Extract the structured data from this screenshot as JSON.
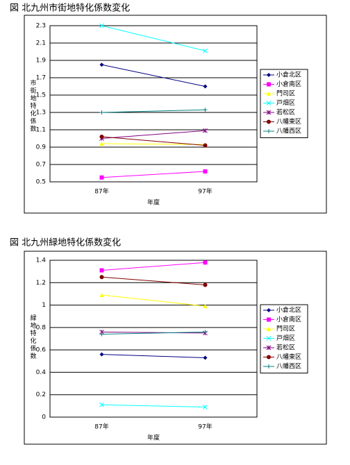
{
  "chart_data": [
    {
      "type": "line",
      "title": "図 北九州市街地特化係数変化",
      "x_label": "年度",
      "y_label": "市街地特化係数",
      "categories": [
        "87年",
        "97年"
      ],
      "ylim": [
        0.5,
        2.3
      ],
      "yticks": [
        0.5,
        0.7,
        0.9,
        1.1,
        1.3,
        1.5,
        1.7,
        1.9,
        2.1,
        2.3
      ],
      "grid": true,
      "legend": "right",
      "series": [
        {
          "name": "小倉北区",
          "color": "#000080",
          "marker": "diamond",
          "values": [
            1.85,
            1.6
          ]
        },
        {
          "name": "小倉南区",
          "color": "#ff00ff",
          "marker": "square",
          "values": [
            0.55,
            0.62
          ]
        },
        {
          "name": "門司区",
          "color": "#ffff00",
          "marker": "triangle",
          "values": [
            0.94,
            0.93
          ]
        },
        {
          "name": "戸畑区",
          "color": "#00ffff",
          "marker": "x",
          "values": [
            2.3,
            2.01
          ]
        },
        {
          "name": "若松区",
          "color": "#800080",
          "marker": "star",
          "values": [
            1.0,
            1.09
          ]
        },
        {
          "name": "八幡東区",
          "color": "#800000",
          "marker": "circle",
          "values": [
            1.02,
            0.92
          ]
        },
        {
          "name": "八幡西区",
          "color": "#008080",
          "marker": "plus",
          "values": [
            1.3,
            1.33
          ]
        }
      ]
    },
    {
      "type": "line",
      "title": "図 北九州緑地特化係数変化",
      "x_label": "年度",
      "y_label": "緑地特化係数",
      "categories": [
        "87年",
        "97年"
      ],
      "ylim": [
        0,
        1.4
      ],
      "yticks": [
        0,
        0.2,
        0.4,
        0.6,
        0.8,
        1,
        1.2,
        1.4
      ],
      "grid": true,
      "legend": "right",
      "series": [
        {
          "name": "小倉北区",
          "color": "#000080",
          "marker": "diamond",
          "values": [
            0.56,
            0.53
          ]
        },
        {
          "name": "小倉南区",
          "color": "#ff00ff",
          "marker": "square",
          "values": [
            1.31,
            1.38
          ]
        },
        {
          "name": "門司区",
          "color": "#ffff00",
          "marker": "triangle",
          "values": [
            1.09,
            0.99
          ]
        },
        {
          "name": "戸畑区",
          "color": "#00ffff",
          "marker": "x",
          "values": [
            0.11,
            0.09
          ]
        },
        {
          "name": "若松区",
          "color": "#800080",
          "marker": "star",
          "values": [
            0.76,
            0.75
          ]
        },
        {
          "name": "八幡東区",
          "color": "#800000",
          "marker": "circle",
          "values": [
            1.25,
            1.18
          ]
        },
        {
          "name": "八幡西区",
          "color": "#008080",
          "marker": "plus",
          "values": [
            0.74,
            0.76
          ]
        }
      ]
    }
  ]
}
